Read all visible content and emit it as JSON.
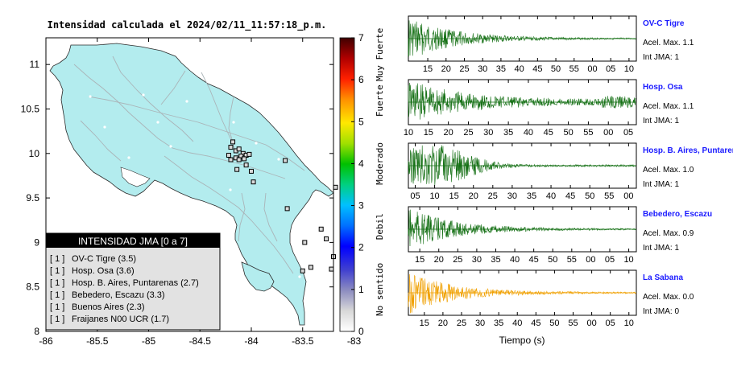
{
  "map": {
    "title": "Intensidad calculada el 2024/02/11_11:57:18_p.m.",
    "x_ticks": [
      "-86",
      "-85.5",
      "-85",
      "-84.5",
      "-84",
      "-83.5",
      "-83"
    ],
    "y_ticks": [
      "11",
      "10.5",
      "10",
      "9.5",
      "9",
      "8.5",
      "8"
    ],
    "xlim": [
      -86,
      -83.2
    ],
    "ylim": [
      8,
      11.3
    ],
    "land_color": "#b3ecee",
    "stations": [
      {
        "lon": -84.18,
        "lat": 10.13
      },
      {
        "lon": -84.2,
        "lat": 10.07
      },
      {
        "lon": -84.15,
        "lat": 10.03
      },
      {
        "lon": -84.12,
        "lat": 10.05
      },
      {
        "lon": -84.08,
        "lat": 10.0
      },
      {
        "lon": -84.05,
        "lat": 9.98
      },
      {
        "lon": -84.02,
        "lat": 9.99
      },
      {
        "lon": -84.1,
        "lat": 9.97
      },
      {
        "lon": -84.15,
        "lat": 9.95
      },
      {
        "lon": -84.2,
        "lat": 9.93
      },
      {
        "lon": -84.12,
        "lat": 9.93
      },
      {
        "lon": -84.07,
        "lat": 9.94
      },
      {
        "lon": -84.22,
        "lat": 9.98
      },
      {
        "lon": -84.05,
        "lat": 9.87
      },
      {
        "lon": -84.14,
        "lat": 9.82
      },
      {
        "lon": -84.0,
        "lat": 9.8
      },
      {
        "lon": -83.98,
        "lat": 9.68
      },
      {
        "lon": -83.67,
        "lat": 9.92
      },
      {
        "lon": -83.65,
        "lat": 9.38
      },
      {
        "lon": -83.18,
        "lat": 9.62
      },
      {
        "lon": -83.32,
        "lat": 9.15
      },
      {
        "lon": -83.27,
        "lat": 9.04
      },
      {
        "lon": -83.48,
        "lat": 9.0
      },
      {
        "lon": -83.2,
        "lat": 8.84
      },
      {
        "lon": -83.22,
        "lat": 8.7
      },
      {
        "lon": -83.42,
        "lat": 8.72
      },
      {
        "lon": -83.5,
        "lat": 8.68
      }
    ]
  },
  "legend": {
    "title": "INTENSIDAD JMA [0 a 7]",
    "items": [
      {
        "tag": "[ 1 ]",
        "label": "OV-C Tigre (3.5)"
      },
      {
        "tag": "[ 1 ]",
        "label": "Hosp. Osa (3.6)"
      },
      {
        "tag": "[ 1 ]",
        "label": "Hosp. B. Aires, Puntarenas (2.7)"
      },
      {
        "tag": "[ 1 ]",
        "label": "Bebedero, Escazu (3.3)"
      },
      {
        "tag": "[ 1 ]",
        "label": "Buenos Aires (2.3)"
      },
      {
        "tag": "[ 1 ]",
        "label": "Fraijanes N00 UCR (1.7)"
      }
    ]
  },
  "colorbar": {
    "ticks": [
      "0",
      "1",
      "2",
      "3",
      "4",
      "5",
      "6",
      "7"
    ],
    "labels": [
      "No sentido",
      "Debil",
      "Moderado",
      "Fuerte",
      "Muy Fuerte"
    ],
    "range": [
      0,
      7
    ]
  },
  "traces": {
    "xlabel": "Tiempo (s)",
    "series_color": "#157015",
    "items": [
      {
        "name": "OV-C Tigre",
        "acel": "Acel. Max. 1.1",
        "int": "Int JMA: 1",
        "color": "#157015",
        "ticks": [
          "15",
          "20",
          "25",
          "30",
          "35",
          "40",
          "45",
          "50",
          "55",
          "00",
          "05",
          "10"
        ],
        "first_frac": 0.085
      },
      {
        "name": "Hosp. Osa",
        "acel": "Acel. Max. 1.1",
        "int": "Int JMA: 1",
        "color": "#157015",
        "ticks": [
          "10",
          "15",
          "20",
          "25",
          "30",
          "35",
          "40",
          "45",
          "50",
          "55",
          "00",
          "05"
        ],
        "first_frac": 0.0
      },
      {
        "name": "Hosp. B. Aires, Puntarenas",
        "acel": "Acel. Max. 1.0",
        "int": "Int JMA: 1",
        "color": "#157015",
        "ticks": [
          "05",
          "10",
          "15",
          "20",
          "25",
          "30",
          "35",
          "40",
          "45",
          "50",
          "55",
          "00"
        ],
        "first_frac": 0.03
      },
      {
        "name": "Bebedero, Escazu",
        "acel": "Acel. Max. 0.9",
        "int": "Int JMA: 1",
        "color": "#157015",
        "ticks": [
          "15",
          "20",
          "25",
          "30",
          "35",
          "40",
          "45",
          "50",
          "55",
          "00",
          "05",
          "10"
        ],
        "first_frac": 0.05
      },
      {
        "name": "La Sabana",
        "acel": "Acel. Max. 0.0",
        "int": "Int JMA: 0",
        "color": "#f0a000",
        "ticks": [
          "15",
          "20",
          "25",
          "30",
          "35",
          "40",
          "45",
          "50",
          "55",
          "00",
          "05",
          "10"
        ],
        "first_frac": 0.07
      }
    ]
  }
}
